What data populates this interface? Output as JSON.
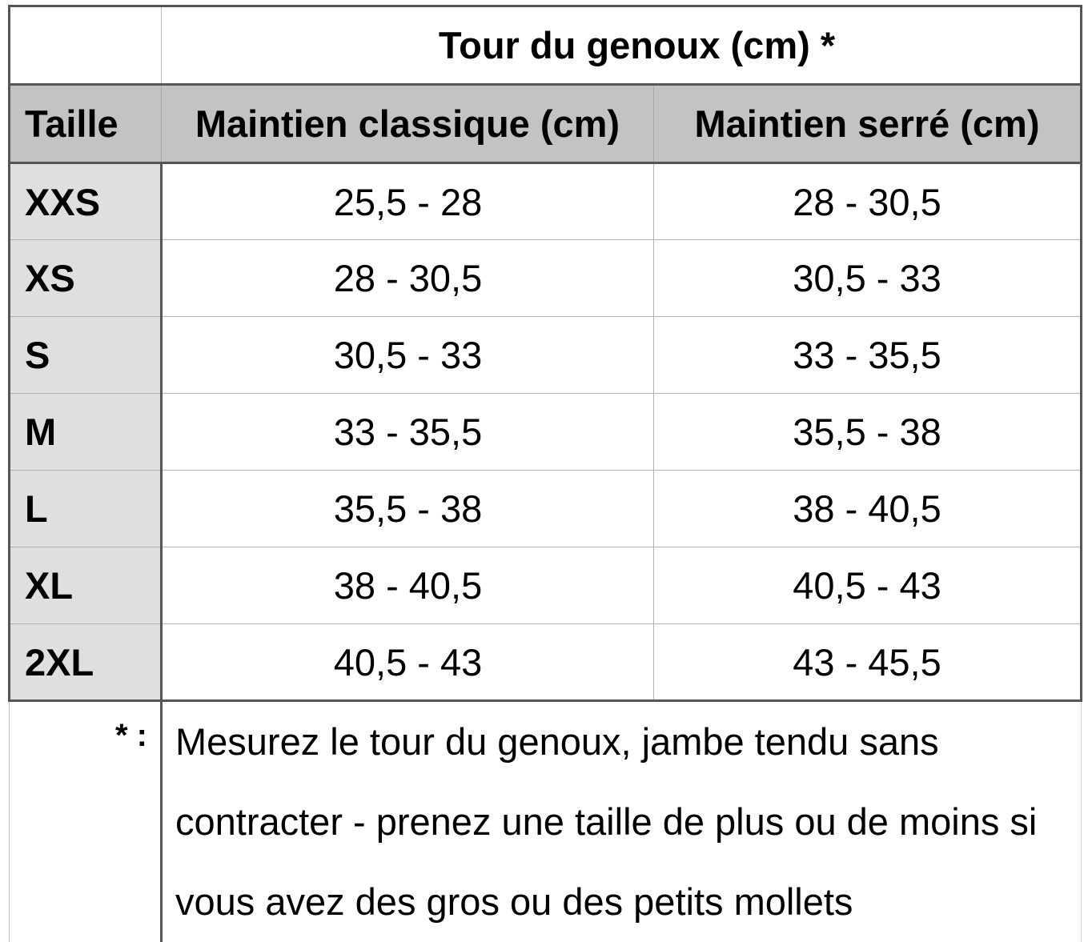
{
  "table": {
    "super_header": "Tour du genoux (cm) *",
    "columns": {
      "size": "Taille",
      "classic": "Maintien classique (cm)",
      "tight": "Maintien serré (cm)"
    },
    "rows": [
      {
        "size": "XXS",
        "classic": "25,5 - 28",
        "tight": "28 - 30,5"
      },
      {
        "size": "XS",
        "classic": "28 - 30,5",
        "tight": "30,5 - 33"
      },
      {
        "size": "S",
        "classic": "30,5 - 33",
        "tight": "33 - 35,5"
      },
      {
        "size": "M",
        "classic": "33 - 35,5",
        "tight": "35,5 - 38"
      },
      {
        "size": "L",
        "classic": "35,5 - 38",
        "tight": "38 - 40,5"
      },
      {
        "size": "XL",
        "classic": "38 - 40,5",
        "tight": "40,5 - 43"
      },
      {
        "size": "2XL",
        "classic": "40,5 - 43",
        "tight": "43 - 45,5"
      }
    ],
    "footnote": {
      "marker": "* :",
      "text": "Mesurez le tour du genoux, jambe tendu sans contracter - prenez une taille de plus ou de moins si vous avez des gros ou des petits mollets"
    }
  },
  "colors": {
    "header_background": "#c3c3c3",
    "size_column_background": "#dfdfdf",
    "border": "#555555"
  }
}
